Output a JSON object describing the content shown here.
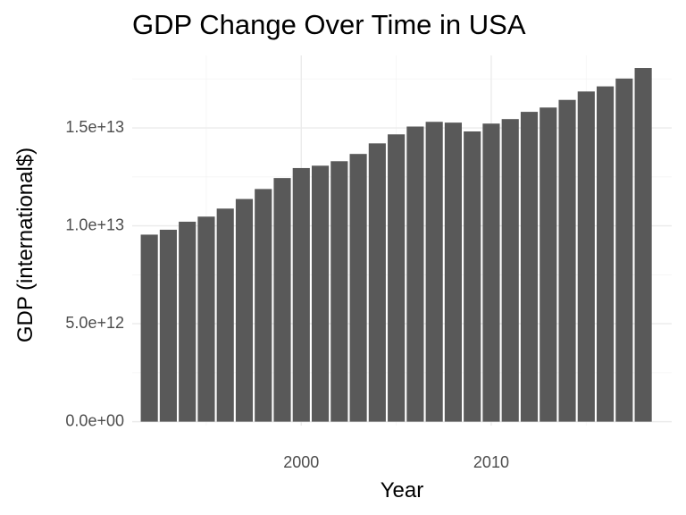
{
  "chart_data": {
    "type": "bar",
    "title": "GDP Change Over Time in USA",
    "xlabel": "Year",
    "ylabel": "GDP (international$)",
    "x": [
      1992,
      1993,
      1994,
      1995,
      1996,
      1997,
      1998,
      1999,
      2000,
      2001,
      2002,
      2003,
      2004,
      2005,
      2006,
      2007,
      2008,
      2009,
      2010,
      2011,
      2012,
      2013,
      2014,
      2015,
      2016,
      2017,
      2018
    ],
    "values": [
      9550000000000.0,
      9800000000000.0,
      10210000000000.0,
      10470000000000.0,
      10880000000000.0,
      11370000000000.0,
      11880000000000.0,
      12440000000000.0,
      12950000000000.0,
      13070000000000.0,
      13300000000000.0,
      13670000000000.0,
      14210000000000.0,
      14670000000000.0,
      15070000000000.0,
      15310000000000.0,
      15270000000000.0,
      14820000000000.0,
      15220000000000.0,
      15450000000000.0,
      15820000000000.0,
      16040000000000.0,
      16430000000000.0,
      16860000000000.0,
      17120000000000.0,
      17520000000000.0,
      18060000000000.0
    ],
    "xlim": [
      1991.1,
      2019.5
    ],
    "ylim": [
      -200000000000.0,
      18700000000000.0
    ],
    "xticks": [
      2000,
      2010
    ],
    "xtick_labels": [
      "2000",
      "2010"
    ],
    "yticks": [
      0,
      5000000000000.0,
      10000000000000.0,
      15000000000000.0
    ],
    "ytick_labels": [
      "0.0e+00",
      "5.0e+12",
      "1.0e+13",
      "1.5e+13"
    ],
    "bar_color": "#595959",
    "grid": true,
    "legend": false
  }
}
